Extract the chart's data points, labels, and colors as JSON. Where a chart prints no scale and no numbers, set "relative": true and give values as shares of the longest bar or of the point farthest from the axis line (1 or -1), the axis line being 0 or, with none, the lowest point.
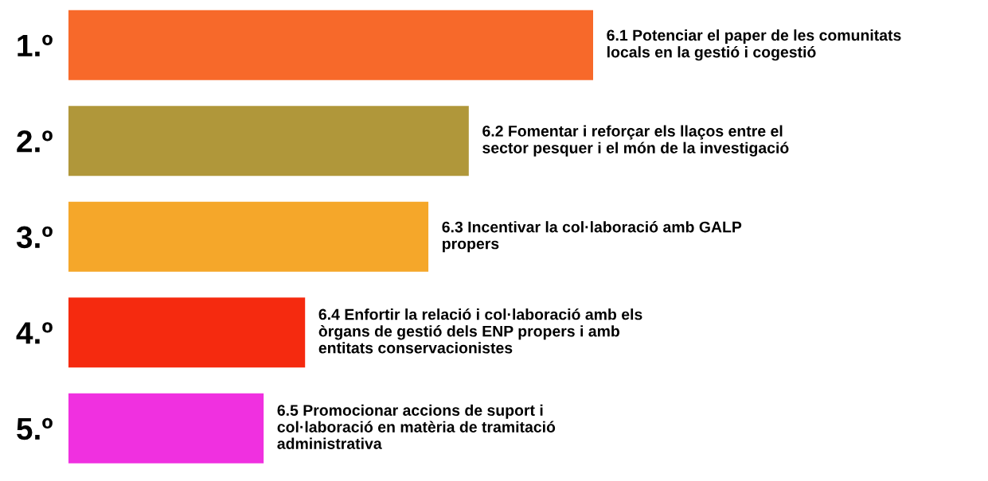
{
  "chart_data": {
    "type": "bar",
    "orientation": "horizontal",
    "relative": true,
    "categories": [
      "1.º",
      "2.º",
      "3.º",
      "4.º",
      "5.º"
    ],
    "values": [
      1,
      0.763,
      0.686,
      0.451,
      0.372
    ],
    "colors": [
      "#f7692a",
      "#b0973a",
      "#f5a72a",
      "#f52a0f",
      "#f030e0"
    ],
    "annotations": [
      {
        "text": "6.1 Potenciar el paper de les comunitats\nlocals en la gestió i cogestió",
        "x": 1,
        "y": "1.º"
      },
      {
        "text": "6.2 Fomentar i reforçar els llaços entre el\nsector pesquer i el món de la investigació",
        "x": 0.763,
        "y": "2.º"
      },
      {
        "text": "6.3 Incentivar la col·laboració amb GALP\npropers",
        "x": 0.686,
        "y": "3.º"
      },
      {
        "text": "6.4 Enfortir la relació i col·laboració amb els\nòrgans de gestió dels ENP propers i amb\nentitats conservacionistes",
        "x": 0.451,
        "y": "4.º"
      },
      {
        "text": "6.5 Promocionar accions de suport i\ncol·laboració en matèria de tramitació\nadministrativa",
        "x": 0.372,
        "y": "5.º"
      }
    ],
    "grid": false,
    "legend": false,
    "tick_labels": "y"
  }
}
